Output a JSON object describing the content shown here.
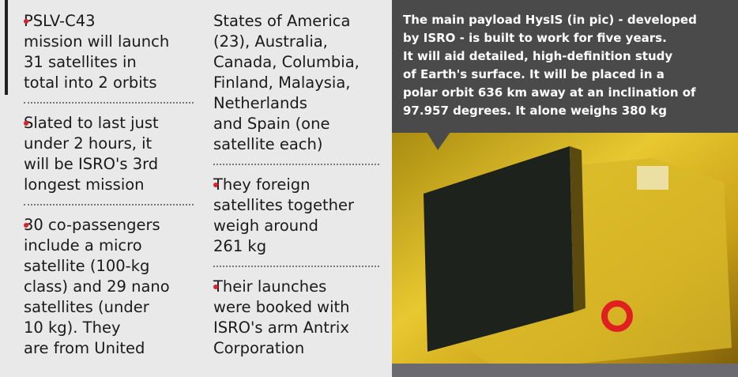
{
  "columns": [
    {
      "items": [
        {
          "bullet": true,
          "lines": [
            "PSLV-C43",
            "mission will launch",
            "31 satellites in",
            "total into 2 orbits"
          ]
        },
        {
          "bullet": true,
          "lines": [
            "Slated to last just",
            "under 2 hours, it",
            "will be ISRO's 3rd",
            "longest mission"
          ]
        },
        {
          "bullet": true,
          "lines": [
            "30 co-passengers",
            "include a micro",
            "satellite (100-kg",
            "class) and 29 nano",
            "satellites (under",
            "10 kg). They",
            "are from United"
          ]
        }
      ]
    },
    {
      "items": [
        {
          "bullet": false,
          "lines": [
            "States of America",
            "(23), Australia,",
            "Canada, Columbia,",
            "Finland, Malaysia,",
            "Netherlands",
            "and Spain (one",
            "satellite each)"
          ]
        },
        {
          "bullet": true,
          "lines": [
            "They foreign",
            "satellites together",
            "weigh around",
            "261 kg"
          ]
        },
        {
          "bullet": true,
          "lines": [
            "Their launches",
            "were booked with",
            "ISRO's arm Antrix",
            "Corporation"
          ]
        }
      ]
    }
  ],
  "caption": {
    "lines": [
      "The main payload HysIS (in pic) - developed",
      "by ISRO - is built to work for five years.",
      "It will aid detailed, high-definition study",
      "of Earth's surface. It will be placed in a",
      "polar orbit 636 km away at an inclination of",
      "97.957 degrees. It alone weighs 380 kg"
    ]
  }
}
